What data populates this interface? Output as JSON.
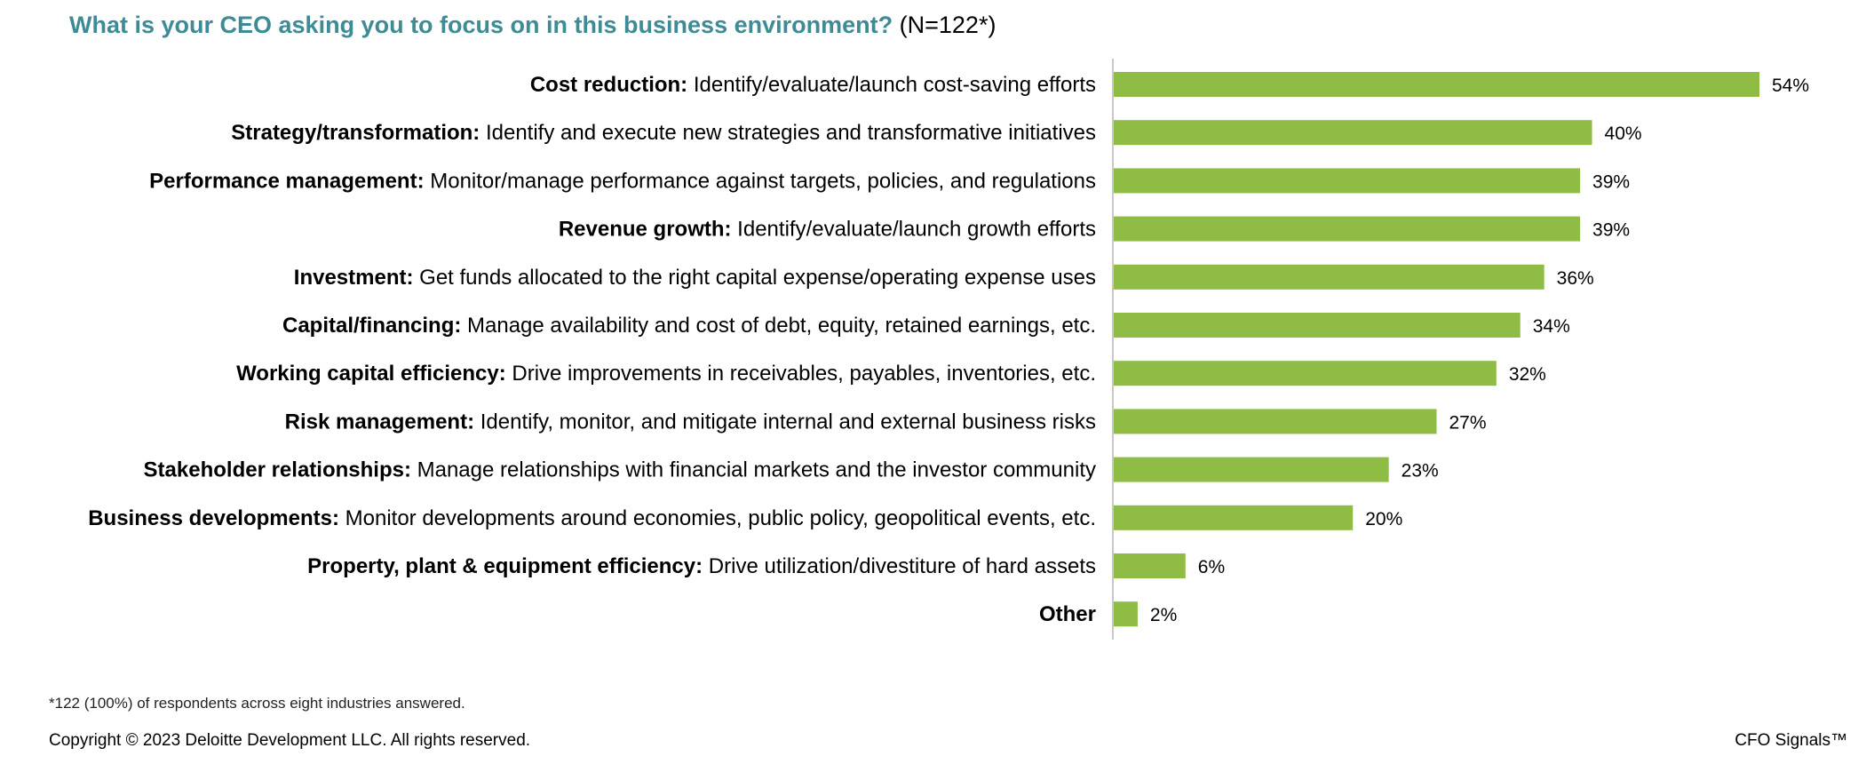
{
  "chart_data": {
    "type": "bar",
    "orientation": "horizontal",
    "title": "What is your CEO asking you to focus on in this business environment?",
    "subtitle": "(N=122*)",
    "xlim": [
      0,
      54
    ],
    "grid": false,
    "categories": [
      {
        "bold": "Cost reduction:",
        "rest": " Identify/evaluate/launch cost-saving efforts"
      },
      {
        "bold": "Strategy/transformation:",
        "rest": " Identify and execute new strategies and transformative initiatives"
      },
      {
        "bold": "Performance management:",
        "rest": " Monitor/manage performance against targets, policies, and regulations"
      },
      {
        "bold": "Revenue growth:",
        "rest": " Identify/evaluate/launch growth efforts"
      },
      {
        "bold": "Investment:",
        "rest": " Get funds allocated to the right capital expense/operating expense uses"
      },
      {
        "bold": "Capital/financing:",
        "rest": " Manage availability and cost of debt, equity, retained earnings, etc."
      },
      {
        "bold": "Working capital efficiency:",
        "rest": " Drive improvements in receivables, payables, inventories, etc."
      },
      {
        "bold": "Risk management:",
        "rest": " Identify, monitor, and mitigate internal and external business risks"
      },
      {
        "bold": "Stakeholder relationships:",
        "rest": " Manage relationships with financial markets and the investor community"
      },
      {
        "bold": "Business developments:",
        "rest": " Monitor developments around economies, public policy, geopolitical events, etc."
      },
      {
        "bold": "Property, plant & equipment efficiency:",
        "rest": " Drive utilization/divestiture of hard assets"
      },
      {
        "bold": "Other",
        "rest": ""
      }
    ],
    "values": [
      54,
      40,
      39,
      39,
      36,
      34,
      32,
      27,
      23,
      20,
      6,
      2
    ],
    "data_labels": [
      "54%",
      "40%",
      "39%",
      "39%",
      "36%",
      "34%",
      "32%",
      "27%",
      "23%",
      "20%",
      "6%",
      "2%"
    ],
    "bar_color": "#8fbc45",
    "axis_color": "#c8c8c8"
  },
  "footer": {
    "footnote": "*122 (100%) of respondents across eight industries answered.",
    "copyright": "Copyright © 2023 Deloitte Development LLC. All rights reserved.",
    "brand": "CFO Signals™"
  },
  "title_color": "#3e8b95"
}
